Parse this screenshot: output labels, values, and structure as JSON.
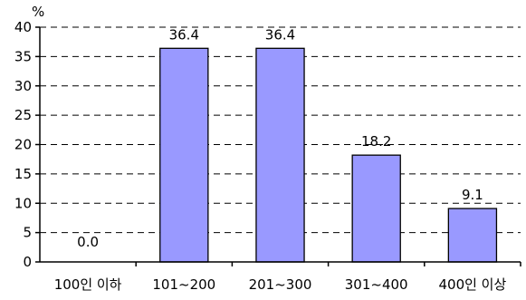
{
  "chart_data": {
    "type": "bar",
    "unit": "%",
    "categories": [
      "100인 이하",
      "101~200",
      "201~300",
      "301~400",
      "400인 이상"
    ],
    "values": [
      0.0,
      36.4,
      36.4,
      18.2,
      9.1
    ],
    "value_labels": [
      "0.0",
      "36.4",
      "36.4",
      "18.2",
      "9.1"
    ],
    "ylim": [
      0,
      40
    ],
    "yticks": [
      0,
      5,
      10,
      15,
      20,
      25,
      30,
      35,
      40
    ],
    "grid": "dashed horizontal",
    "bar_color": "#9999ff"
  }
}
